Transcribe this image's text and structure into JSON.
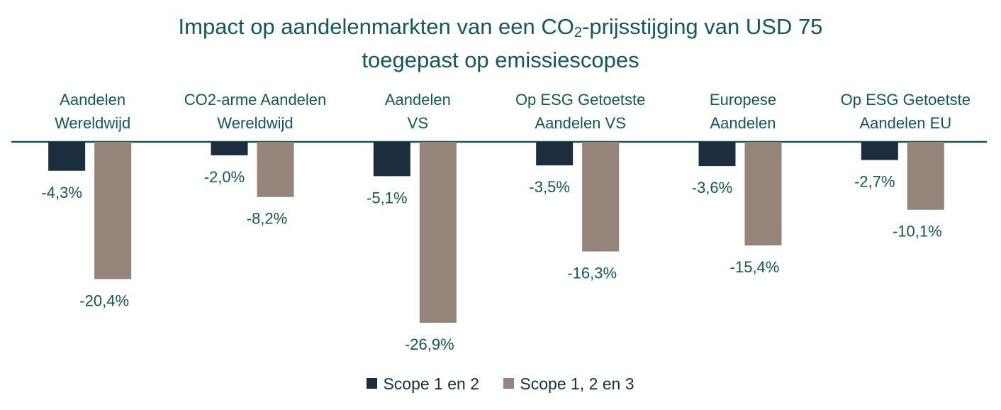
{
  "title": {
    "line1_prefix": "Impact op aandelenmarkten van een CO",
    "line1_sub": "2",
    "line1_suffix": "-prijsstijging van USD 75",
    "line2": "toegepast op emissiescopes"
  },
  "colors": {
    "series1": "#1c2e3e",
    "series2": "#948479",
    "text": "#0f5a56",
    "axis": "#0f5a56"
  },
  "chart_data": {
    "type": "bar",
    "categories": [
      [
        "Aandelen",
        "Wereldwijd"
      ],
      [
        "CO2-arme Aandelen",
        "Wereldwijd"
      ],
      [
        "Aandelen",
        "VS"
      ],
      [
        "Op ESG Getoetste",
        "Aandelen VS"
      ],
      [
        "Europese",
        "Aandelen"
      ],
      [
        "Op ESG Getoetste",
        "Aandelen EU"
      ]
    ],
    "series": [
      {
        "name": "Scope 1 en 2",
        "values": [
          -4.3,
          -2.0,
          -5.1,
          -3.5,
          -3.6,
          -2.7
        ],
        "labels": [
          "-4,3%",
          "-2,0%",
          "-5,1%",
          "-3,5%",
          "-3,6%",
          "-2,7%"
        ]
      },
      {
        "name": "Scope 1, 2 en 3",
        "values": [
          -20.4,
          -8.2,
          -26.9,
          -16.3,
          -15.4,
          -10.1
        ],
        "labels": [
          "-20,4%",
          "-8,2%",
          "-26,9%",
          "-16,3%",
          "-15,4%",
          "-10,1%"
        ]
      }
    ],
    "ylim": [
      -28,
      0
    ],
    "legend": "bottom-center",
    "grid": false
  }
}
